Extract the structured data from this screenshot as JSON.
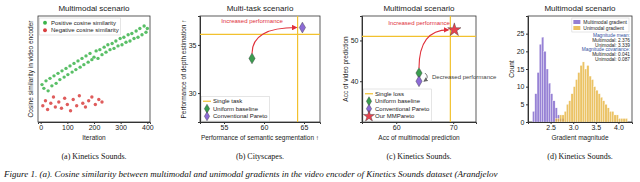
{
  "chart_data": [
    {
      "type": "scatter",
      "title": "Multimodal scenario",
      "x_label": "Iteration",
      "y_label": "Cosine similarity in video encoder",
      "caption": "(a) Kinetics Sounds.",
      "xlim": [
        -10,
        410
      ],
      "xticks": [
        0,
        100,
        200,
        300,
        400
      ],
      "ylim": [
        -0.25,
        0.6
      ],
      "tick_labels": "x",
      "legend": "upper left",
      "series": [
        {
          "name": "Positive cosine similarity",
          "color": "#3cb44b",
          "marker": "circle",
          "x": [
            5,
            12,
            20,
            28,
            35,
            42,
            50,
            58,
            65,
            72,
            80,
            88,
            95,
            102,
            110,
            118,
            125,
            132,
            140,
            148,
            155,
            162,
            170,
            178,
            185,
            192,
            200,
            208,
            215,
            222,
            230,
            238,
            245,
            252,
            260,
            268,
            275,
            282,
            290,
            298,
            305,
            312,
            320,
            328,
            335,
            342,
            350,
            358,
            365,
            372,
            380,
            388,
            395,
            400
          ],
          "values": [
            0.05,
            0.02,
            0.08,
            0,
            0.1,
            0.04,
            0.12,
            0.06,
            0.14,
            0.09,
            0.16,
            0.11,
            0.18,
            0.13,
            0.2,
            0.15,
            0.22,
            0.17,
            0.24,
            0.19,
            0.26,
            0.21,
            0.28,
            0.23,
            0.3,
            0.25,
            0.27,
            0.32,
            0.26,
            0.33,
            0.29,
            0.35,
            0.31,
            0.37,
            0.33,
            0.38,
            0.34,
            0.4,
            0.36,
            0.42,
            0.37,
            0.43,
            0.39,
            0.45,
            0.4,
            0.46,
            0.42,
            0.48,
            0.43,
            0.5,
            0.45,
            0.52,
            0.47,
            0.5
          ]
        },
        {
          "name": "Negative cosine similarity",
          "color": "#d94040",
          "marker": "circle",
          "x": [
            8,
            18,
            26,
            38,
            48,
            55,
            68,
            78,
            90,
            100,
            112,
            122,
            135,
            145,
            158,
            168,
            180,
            192,
            205,
            218,
            230
          ],
          "values": [
            -0.12,
            -0.08,
            -0.15,
            -0.1,
            -0.05,
            -0.13,
            -0.09,
            -0.14,
            -0.06,
            -0.11,
            -0.16,
            -0.07,
            -0.12,
            -0.04,
            -0.1,
            -0.13,
            -0.08,
            -0.05,
            -0.11,
            -0.07,
            -0.09
          ]
        }
      ]
    },
    {
      "type": "scatter",
      "title": "Multi-task scenario",
      "x_label": "Performance of semantic segmentation ↑",
      "y_label": "Performance of depth estimation ↑",
      "caption": "(b) Cityscapes.",
      "xlim": [
        52,
        67
      ],
      "xticks": [
        55,
        60,
        65
      ],
      "ylim": [
        27,
        38
      ],
      "yticks": [
        30,
        35
      ],
      "legend": "lower left",
      "annotations": [
        "Increased performance"
      ],
      "series": [
        {
          "name": "Single task",
          "type": "reference",
          "color": "#f2c12e",
          "line_style": "solid",
          "hline": 36.1,
          "vline": 64.2
        },
        {
          "name": "Uniform baseline",
          "color": "#3a9d4f",
          "marker": "diamond",
          "x": [
            58.5
          ],
          "values": [
            33.6
          ]
        },
        {
          "name": "Conventional Pareto",
          "color": "#8c6bd6",
          "marker": "diamond",
          "x": [
            64.8
          ],
          "values": [
            36.8
          ]
        }
      ]
    },
    {
      "type": "scatter",
      "title": "Multimodal scenario",
      "x_label": "Acc of multimodal prediction",
      "y_label": "Acc of video prediction",
      "caption": "(c) Kinetics Sounds.",
      "xlim": [
        54,
        74
      ],
      "xticks": [
        60,
        70
      ],
      "ylim": [
        30,
        56
      ],
      "yticks": [
        40,
        50
      ],
      "legend": "lower left",
      "annotations": [
        "Increased performance",
        "Decreased performance"
      ],
      "series": [
        {
          "name": "Single loss",
          "type": "reference",
          "color": "#f2c12e",
          "line_style": "solid",
          "hline": 51,
          "vline": 69.5
        },
        {
          "name": "Uniform baseline",
          "color": "#3a9d4f",
          "marker": "diamond",
          "x": [
            64
          ],
          "values": [
            42
          ]
        },
        {
          "name": "Conventional Pareto",
          "color": "#8c6bd6",
          "marker": "diamond",
          "x": [
            64
          ],
          "values": [
            40
          ]
        },
        {
          "name": "Our MMPareto",
          "color": "#e8434f",
          "marker": "star",
          "x": [
            70.2
          ],
          "values": [
            52.6
          ]
        }
      ]
    },
    {
      "type": "histogram",
      "title": "Multimodal scenario",
      "x_label": "Gradient magnitude",
      "y_label": "Count",
      "caption": "(d) Kinetics Sounds.",
      "xlim": [
        2.0,
        4.3
      ],
      "xticks": [
        2.5,
        {
          "value": 3,
          "label": "3.0"
        },
        3.5,
        {
          "value": 4,
          "label": "4.0"
        }
      ],
      "ylim": [
        0,
        30
      ],
      "yticks": [
        0,
        5,
        10,
        15,
        20,
        25
      ],
      "legend": "upper right",
      "annotations": [
        "Magnitude mean:",
        "Multimodal: 2.376",
        "Unimodal: 3.339",
        "Magnitude covariance:",
        "Multimodal: 0.041",
        "Unimodal: 0.087"
      ],
      "series": [
        {
          "name": "Multimodal gradient",
          "color": "#7a5fc9",
          "bins": [
            2.1,
            2.15,
            2.2,
            2.25,
            2.3,
            2.35,
            2.4,
            2.45,
            2.5,
            2.55,
            2.6,
            2.65,
            2.7,
            2.75,
            2.8
          ],
          "values": [
            3,
            8,
            14,
            22,
            24,
            20,
            15,
            11,
            8,
            6,
            4,
            2,
            1,
            1
          ]
        },
        {
          "name": "Unimodal gradient",
          "color": "#e6b23a",
          "bins": [
            2.6,
            2.65,
            2.7,
            2.75,
            2.8,
            2.85,
            2.9,
            2.95,
            3.0,
            3.05,
            3.1,
            3.15,
            3.2,
            3.25,
            3.3,
            3.35,
            3.4,
            3.45,
            3.5,
            3.55,
            3.6,
            3.65,
            3.7,
            3.75,
            3.8,
            3.85,
            3.9,
            3.95,
            4.0,
            4.05,
            4.1,
            4.15,
            4.2
          ],
          "values": [
            1,
            1,
            2,
            2,
            3,
            5,
            6,
            8,
            10,
            12,
            14,
            16,
            17,
            15,
            16,
            13,
            12,
            10,
            9,
            8,
            7,
            6,
            5,
            4,
            3,
            3,
            2,
            2,
            1,
            1,
            1,
            1
          ]
        }
      ]
    }
  ],
  "figure_caption": "Figure 1. (a). Cosine similarity between multimodal and unimodal gradients in the video encoder of Kinetics Sounds dataset (Arandjelov"
}
